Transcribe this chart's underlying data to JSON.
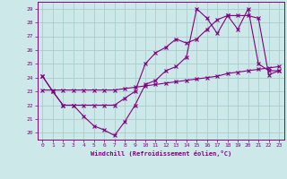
{
  "xlabel": "Windchill (Refroidissement éolien,°C)",
  "bg_color": "#cce8e8",
  "line_color": "#800080",
  "grid_color": "#aacccc",
  "xlim": [
    -0.5,
    23.5
  ],
  "ylim": [
    19.5,
    29.5
  ],
  "yticks": [
    20,
    21,
    22,
    23,
    24,
    25,
    26,
    27,
    28,
    29
  ],
  "xticks": [
    0,
    1,
    2,
    3,
    4,
    5,
    6,
    7,
    8,
    9,
    10,
    11,
    12,
    13,
    14,
    15,
    16,
    17,
    18,
    19,
    20,
    21,
    22,
    23
  ],
  "line1_x": [
    0,
    1,
    2,
    3,
    4,
    5,
    6,
    7,
    8,
    9,
    10,
    11,
    12,
    13,
    14,
    15,
    16,
    17,
    18,
    19,
    20,
    21,
    22,
    23
  ],
  "line1_y": [
    24.1,
    23.0,
    22.0,
    22.0,
    21.2,
    20.5,
    20.2,
    19.8,
    20.8,
    22.0,
    23.5,
    23.8,
    24.5,
    24.8,
    25.5,
    29.0,
    28.3,
    27.2,
    28.5,
    27.5,
    29.0,
    25.0,
    24.5,
    24.5
  ],
  "line2_x": [
    0,
    1,
    2,
    3,
    4,
    5,
    6,
    7,
    8,
    9,
    10,
    11,
    12,
    13,
    14,
    15,
    16,
    17,
    18,
    19,
    20,
    21,
    22,
    23
  ],
  "line2_y": [
    23.1,
    23.1,
    23.1,
    23.1,
    23.1,
    23.1,
    23.1,
    23.1,
    23.2,
    23.3,
    23.4,
    23.5,
    23.6,
    23.7,
    23.8,
    23.9,
    24.0,
    24.1,
    24.3,
    24.4,
    24.5,
    24.6,
    24.7,
    24.8
  ],
  "line3_x": [
    0,
    1,
    2,
    3,
    4,
    5,
    6,
    7,
    8,
    9,
    10,
    11,
    12,
    13,
    14,
    15,
    16,
    17,
    18,
    19,
    20,
    21,
    22,
    23
  ],
  "line3_y": [
    24.1,
    23.0,
    22.0,
    22.0,
    22.0,
    22.0,
    22.0,
    22.0,
    22.5,
    23.0,
    25.0,
    25.8,
    26.2,
    26.8,
    26.5,
    26.8,
    27.5,
    28.2,
    28.5,
    28.5,
    28.5,
    28.3,
    24.2,
    24.5
  ]
}
